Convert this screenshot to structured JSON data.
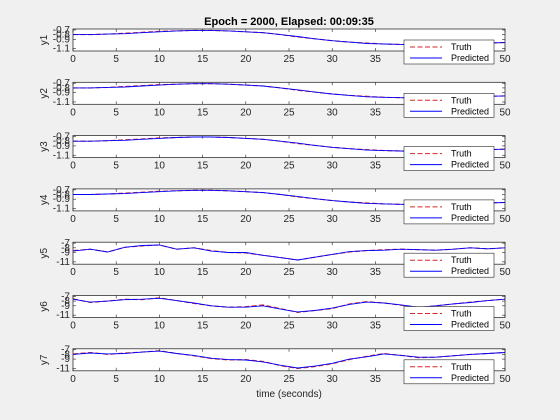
{
  "figure": {
    "title": "Epoch = 2000, Elapsed: 00:09:35",
    "xlabel": "time (seconds)"
  },
  "colors": {
    "truth": "#d62728",
    "predicted": "#0000ff",
    "axes_bg": "#ffffff",
    "figure_bg": "#f0f0f0"
  },
  "legend_labels": {
    "truth": "Truth",
    "predicted": "Predicted"
  },
  "chart_data": [
    {
      "type": "line",
      "ylabel": "y1",
      "xlim": [
        0,
        50
      ],
      "ylim": [
        -1.15,
        -0.68
      ],
      "xticks": [
        0,
        5,
        10,
        15,
        20,
        25,
        30,
        35,
        50
      ],
      "yticks": [
        -0.7,
        -0.8,
        -0.9,
        -1.1
      ],
      "ytick_labels": [
        "-0.7",
        "-0.8",
        "-0.9",
        "-1.1"
      ],
      "legend": "bottom-right",
      "x": [
        0,
        2,
        4,
        6,
        8,
        10,
        12,
        14,
        16,
        18,
        20,
        22,
        24,
        26,
        28,
        30,
        32,
        34,
        36,
        38,
        40,
        42,
        44,
        46,
        48,
        50
      ],
      "series": [
        {
          "name": "Truth",
          "style": "dashed",
          "values": [
            -0.8,
            -0.8,
            -0.79,
            -0.77,
            -0.75,
            -0.73,
            -0.72,
            -0.71,
            -0.71,
            -0.72,
            -0.74,
            -0.76,
            -0.8,
            -0.85,
            -0.89,
            -0.93,
            -0.96,
            -0.98,
            -1.0,
            -1.01,
            -1.02,
            -1.01,
            -1.0,
            -0.99,
            -0.98,
            -0.97
          ]
        },
        {
          "name": "Predicted",
          "style": "solid",
          "values": [
            -0.8,
            -0.8,
            -0.79,
            -0.78,
            -0.76,
            -0.74,
            -0.72,
            -0.71,
            -0.71,
            -0.72,
            -0.74,
            -0.76,
            -0.8,
            -0.84,
            -0.89,
            -0.93,
            -0.96,
            -0.99,
            -1.0,
            -1.01,
            -1.02,
            -1.02,
            -1.01,
            -0.99,
            -0.98,
            -0.97
          ]
        }
      ]
    },
    {
      "type": "line",
      "ylabel": "y2",
      "xlim": [
        0,
        50
      ],
      "ylim": [
        -1.15,
        -0.68
      ],
      "xticks": [
        0,
        5,
        10,
        15,
        20,
        25,
        30,
        35,
        50
      ],
      "yticks": [
        -0.7,
        -0.8,
        -0.9,
        -1.1
      ],
      "ytick_labels": [
        "-0.7",
        "-0.8",
        "-0.9",
        "-1.1"
      ],
      "legend": "bottom-right",
      "x": [
        0,
        2,
        4,
        6,
        8,
        10,
        12,
        14,
        16,
        18,
        20,
        22,
        24,
        26,
        28,
        30,
        32,
        34,
        36,
        38,
        40,
        42,
        44,
        46,
        48,
        50
      ],
      "series": [
        {
          "name": "Truth",
          "style": "dashed",
          "values": [
            -0.8,
            -0.8,
            -0.79,
            -0.77,
            -0.75,
            -0.73,
            -0.72,
            -0.71,
            -0.71,
            -0.72,
            -0.74,
            -0.76,
            -0.8,
            -0.85,
            -0.89,
            -0.93,
            -0.96,
            -0.98,
            -1.0,
            -1.01,
            -1.02,
            -1.01,
            -1.0,
            -0.99,
            -0.98,
            -0.97
          ]
        },
        {
          "name": "Predicted",
          "style": "solid",
          "values": [
            -0.8,
            -0.8,
            -0.79,
            -0.78,
            -0.76,
            -0.74,
            -0.72,
            -0.71,
            -0.71,
            -0.72,
            -0.74,
            -0.76,
            -0.8,
            -0.84,
            -0.89,
            -0.93,
            -0.96,
            -0.99,
            -1.0,
            -1.01,
            -1.02,
            -1.02,
            -1.01,
            -0.99,
            -0.98,
            -0.97
          ]
        }
      ]
    },
    {
      "type": "line",
      "ylabel": "y3",
      "xlim": [
        0,
        50
      ],
      "ylim": [
        -1.15,
        -0.68
      ],
      "xticks": [
        0,
        5,
        10,
        15,
        20,
        25,
        30,
        35,
        50
      ],
      "yticks": [
        -0.7,
        -0.8,
        -0.9,
        -1.1
      ],
      "ytick_labels": [
        "-0.7",
        "-0.8",
        "-0.9",
        "-1.1"
      ],
      "legend": "bottom-right",
      "x": [
        0,
        2,
        4,
        6,
        8,
        10,
        12,
        14,
        16,
        18,
        20,
        22,
        24,
        26,
        28,
        30,
        32,
        34,
        36,
        38,
        40,
        42,
        44,
        46,
        48,
        50
      ],
      "series": [
        {
          "name": "Truth",
          "style": "dashed",
          "values": [
            -0.8,
            -0.8,
            -0.79,
            -0.77,
            -0.75,
            -0.73,
            -0.72,
            -0.71,
            -0.71,
            -0.72,
            -0.74,
            -0.76,
            -0.8,
            -0.85,
            -0.89,
            -0.93,
            -0.96,
            -0.98,
            -1.0,
            -1.01,
            -1.02,
            -1.01,
            -1.0,
            -0.99,
            -0.98,
            -0.97
          ]
        },
        {
          "name": "Predicted",
          "style": "solid",
          "values": [
            -0.8,
            -0.8,
            -0.79,
            -0.78,
            -0.76,
            -0.74,
            -0.72,
            -0.71,
            -0.71,
            -0.72,
            -0.74,
            -0.76,
            -0.8,
            -0.84,
            -0.89,
            -0.93,
            -0.96,
            -0.99,
            -1.0,
            -1.01,
            -1.02,
            -1.02,
            -1.01,
            -0.99,
            -0.98,
            -0.97
          ]
        }
      ]
    },
    {
      "type": "line",
      "ylabel": "y4",
      "xlim": [
        0,
        50
      ],
      "ylim": [
        -1.15,
        -0.68
      ],
      "xticks": [
        0,
        5,
        10,
        15,
        20,
        25,
        30,
        35,
        50
      ],
      "yticks": [
        -0.7,
        -0.8,
        -0.9,
        -1.1
      ],
      "ytick_labels": [
        "-0.7",
        "-0.8",
        "-0.9",
        "-1.1"
      ],
      "legend": "bottom-right",
      "x": [
        0,
        2,
        4,
        6,
        8,
        10,
        12,
        14,
        16,
        18,
        20,
        22,
        24,
        26,
        28,
        30,
        32,
        34,
        36,
        38,
        40,
        42,
        44,
        46,
        48,
        50
      ],
      "series": [
        {
          "name": "Truth",
          "style": "dashed",
          "values": [
            -0.8,
            -0.8,
            -0.79,
            -0.77,
            -0.75,
            -0.73,
            -0.72,
            -0.71,
            -0.71,
            -0.72,
            -0.74,
            -0.76,
            -0.8,
            -0.85,
            -0.89,
            -0.93,
            -0.96,
            -0.98,
            -1.0,
            -1.01,
            -1.02,
            -1.01,
            -1.0,
            -0.99,
            -0.98,
            -0.97
          ]
        },
        {
          "name": "Predicted",
          "style": "solid",
          "values": [
            -0.8,
            -0.8,
            -0.79,
            -0.78,
            -0.76,
            -0.74,
            -0.72,
            -0.71,
            -0.71,
            -0.72,
            -0.74,
            -0.76,
            -0.8,
            -0.84,
            -0.89,
            -0.93,
            -0.96,
            -0.99,
            -1.0,
            -1.01,
            -1.02,
            -1.02,
            -1.01,
            -0.99,
            -0.98,
            -0.97
          ]
        }
      ]
    },
    {
      "type": "line",
      "ylabel": "y5",
      "xlim": [
        0,
        50
      ],
      "ylim": [
        -11.5,
        -6.8
      ],
      "xticks": [
        0,
        5,
        10,
        15,
        20,
        25,
        30,
        35,
        50
      ],
      "yticks": [
        -7,
        -8,
        -9,
        -11
      ],
      "ytick_labels": [
        "-7",
        "-8",
        "-9",
        "-11"
      ],
      "legend": "bottom-right",
      "x": [
        0,
        2,
        4,
        6,
        8,
        10,
        12,
        14,
        16,
        18,
        20,
        22,
        24,
        26,
        28,
        30,
        32,
        34,
        36,
        38,
        40,
        42,
        44,
        46,
        48,
        50
      ],
      "series": [
        {
          "name": "Truth",
          "style": "dashed",
          "values": [
            -8.6,
            -8.3,
            -8.9,
            -7.9,
            -7.6,
            -7.4,
            -8.3,
            -8.0,
            -8.6,
            -9.0,
            -9.1,
            -9.6,
            -10.1,
            -10.6,
            -10.0,
            -9.4,
            -8.9,
            -8.6,
            -8.4,
            -8.3,
            -8.4,
            -8.5,
            -8.3,
            -8.0,
            -8.2,
            -8.0
          ]
        },
        {
          "name": "Predicted",
          "style": "solid",
          "values": [
            -8.7,
            -8.3,
            -8.9,
            -7.9,
            -7.5,
            -7.4,
            -8.3,
            -8.0,
            -8.7,
            -9.0,
            -9.0,
            -9.6,
            -10.1,
            -10.6,
            -10.0,
            -9.4,
            -8.8,
            -8.6,
            -8.5,
            -8.3,
            -8.4,
            -8.5,
            -8.3,
            -8.0,
            -8.2,
            -8.0
          ]
        }
      ]
    },
    {
      "type": "line",
      "ylabel": "y6",
      "xlim": [
        0,
        50
      ],
      "ylim": [
        -11.5,
        -6.8
      ],
      "xticks": [
        0,
        5,
        10,
        15,
        20,
        25,
        30,
        35,
        50
      ],
      "yticks": [
        -7,
        -8,
        -9,
        -11
      ],
      "ytick_labels": [
        "-7",
        "-8",
        "-9",
        "-11"
      ],
      "legend": "bottom-right",
      "x": [
        0,
        2,
        4,
        6,
        8,
        10,
        12,
        14,
        16,
        18,
        20,
        22,
        24,
        26,
        28,
        30,
        32,
        34,
        36,
        38,
        40,
        42,
        44,
        46,
        48,
        50
      ],
      "series": [
        {
          "name": "Truth",
          "style": "dashed",
          "values": [
            -7.5,
            -8.3,
            -8.0,
            -7.6,
            -7.7,
            -7.3,
            -7.9,
            -8.5,
            -9.0,
            -9.3,
            -9.2,
            -8.8,
            -9.6,
            -10.4,
            -10.0,
            -9.6,
            -8.6,
            -8.1,
            -8.4,
            -8.9,
            -9.4,
            -9.0,
            -8.6,
            -8.2,
            -7.9,
            -7.6
          ]
        },
        {
          "name": "Predicted",
          "style": "solid",
          "values": [
            -7.6,
            -8.2,
            -8.0,
            -7.7,
            -7.6,
            -7.4,
            -7.9,
            -8.4,
            -9.0,
            -9.3,
            -9.3,
            -9.0,
            -9.7,
            -10.3,
            -10.0,
            -9.5,
            -8.7,
            -8.2,
            -8.4,
            -8.8,
            -9.3,
            -9.0,
            -8.6,
            -8.3,
            -7.9,
            -7.6
          ]
        }
      ]
    },
    {
      "type": "line",
      "ylabel": "y7",
      "xlim": [
        0,
        50
      ],
      "ylim": [
        -11.5,
        -6.8
      ],
      "xticks": [
        0,
        5,
        10,
        15,
        20,
        25,
        30,
        35,
        50
      ],
      "yticks": [
        -7,
        -8,
        -9,
        -11
      ],
      "ytick_labels": [
        "-7",
        "-8",
        "-9",
        "-11"
      ],
      "legend": "bottom-right",
      "x": [
        0,
        2,
        4,
        6,
        8,
        10,
        12,
        14,
        16,
        18,
        20,
        22,
        24,
        26,
        28,
        30,
        32,
        34,
        36,
        38,
        40,
        42,
        44,
        46,
        48,
        50
      ],
      "series": [
        {
          "name": "Truth",
          "style": "dashed",
          "values": [
            -7.9,
            -7.6,
            -8.0,
            -7.7,
            -7.5,
            -7.2,
            -7.8,
            -8.3,
            -8.9,
            -9.2,
            -9.1,
            -9.5,
            -10.4,
            -11.0,
            -10.6,
            -10.0,
            -9.1,
            -8.4,
            -7.8,
            -8.2,
            -8.7,
            -8.6,
            -8.3,
            -8.0,
            -7.8,
            -7.6
          ]
        },
        {
          "name": "Predicted",
          "style": "solid",
          "values": [
            -8.0,
            -7.7,
            -7.9,
            -7.8,
            -7.5,
            -7.3,
            -7.8,
            -8.2,
            -8.8,
            -9.1,
            -9.2,
            -9.6,
            -10.3,
            -10.9,
            -10.5,
            -9.9,
            -9.0,
            -8.5,
            -7.9,
            -8.2,
            -8.6,
            -8.6,
            -8.3,
            -8.0,
            -7.8,
            -7.6
          ]
        }
      ]
    }
  ]
}
